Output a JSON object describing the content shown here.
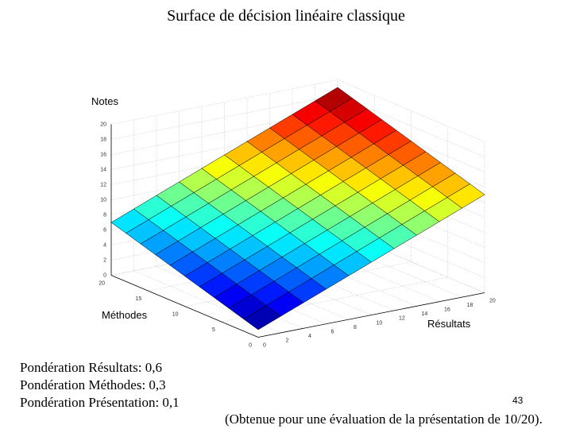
{
  "chart_data": {
    "type": "surface",
    "title": "Surface de décision linéaire classique",
    "xlabel": "Résultats",
    "ylabel": "Méthodes",
    "zlabel": "Notes",
    "x": [
      0,
      2,
      4,
      6,
      8,
      10,
      12,
      14,
      16,
      18,
      20
    ],
    "y": [
      0,
      2,
      4,
      6,
      8,
      10,
      12,
      14,
      16,
      18,
      20
    ],
    "z": [
      [
        1,
        2.2,
        3.4,
        4.6,
        5.8,
        7,
        8.2,
        9.4,
        10.6,
        11.8,
        13
      ],
      [
        1.6,
        2.8,
        4,
        5.2,
        6.4,
        7.6,
        8.8,
        10,
        11.2,
        12.4,
        13.6
      ],
      [
        2.2,
        3.4,
        4.6,
        5.8,
        7,
        8.2,
        9.4,
        10.6,
        11.8,
        13,
        14.2
      ],
      [
        2.8,
        4,
        5.2,
        6.4,
        7.6,
        8.8,
        10,
        11.2,
        12.4,
        13.6,
        14.8
      ],
      [
        3.4,
        4.6,
        5.8,
        7,
        8.2,
        9.4,
        10.6,
        11.8,
        13,
        14.2,
        15.4
      ],
      [
        4,
        5.2,
        6.4,
        7.6,
        8.8,
        10,
        11.2,
        12.4,
        13.6,
        14.8,
        16
      ],
      [
        4.6,
        5.8,
        7,
        8.2,
        9.4,
        10.6,
        11.8,
        13,
        14.2,
        15.4,
        16.6
      ],
      [
        5.2,
        6.4,
        7.6,
        8.8,
        10,
        11.2,
        12.4,
        13.6,
        14.8,
        16,
        17.2
      ],
      [
        5.8,
        7,
        8.2,
        9.4,
        10.6,
        11.8,
        13,
        14.2,
        15.4,
        16.6,
        17.8
      ],
      [
        6.4,
        7.6,
        8.8,
        10,
        11.2,
        12.4,
        13.6,
        14.8,
        16,
        17.2,
        18.4
      ],
      [
        7,
        8.2,
        9.4,
        10.6,
        11.8,
        13,
        14.2,
        15.4,
        16.6,
        17.8,
        19
      ]
    ],
    "xlim": [
      0,
      20
    ],
    "ylim": [
      0,
      20
    ],
    "zlim": [
      0,
      20
    ],
    "xticks": [
      0,
      2,
      4,
      6,
      8,
      10,
      12,
      14,
      16,
      18,
      20
    ],
    "yticks": [
      0,
      5,
      10,
      15,
      20
    ],
    "zticks": [
      0,
      2,
      4,
      6,
      8,
      10,
      12,
      14,
      16,
      18,
      20
    ],
    "grid": true,
    "colormap": "jet"
  },
  "slide": {
    "lines": [
      "Pondération Résultats: 0,6",
      "Pondération Méthodes: 0,3",
      "Pondération Présentation: 0,1"
    ],
    "page_number": 43,
    "note": "(Obtenue pour une évaluation de la présentation de 10/20)."
  }
}
